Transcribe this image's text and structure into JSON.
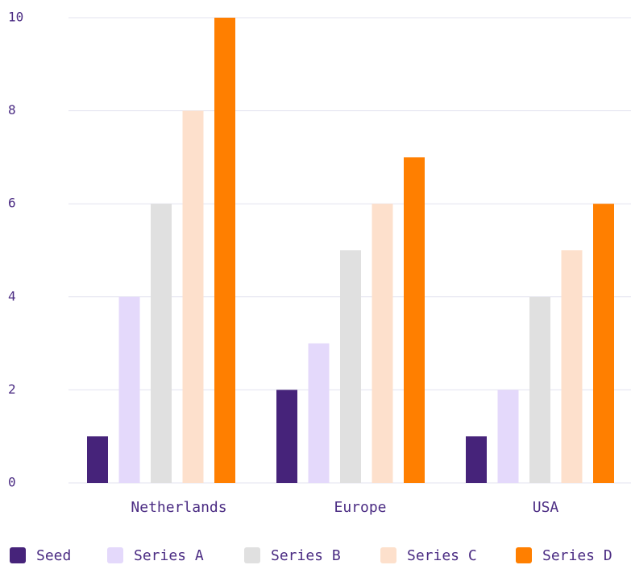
{
  "chart_data": {
    "type": "bar",
    "categories": [
      "Netherlands",
      "Europe",
      "USA"
    ],
    "series": [
      {
        "name": "Seed",
        "values": [
          1,
          2,
          1
        ],
        "color": "#46237a"
      },
      {
        "name": "Series A",
        "values": [
          4,
          3,
          2
        ],
        "color": "#e4d9fb"
      },
      {
        "name": "Series B",
        "values": [
          6,
          5,
          4
        ],
        "color": "#e0e0e0"
      },
      {
        "name": "Series C",
        "values": [
          8,
          6,
          5
        ],
        "color": "#fde0cc"
      },
      {
        "name": "Series D",
        "values": [
          10,
          7,
          6
        ],
        "color": "#ff7f00"
      }
    ],
    "yticks": [
      "0",
      "2",
      "4",
      "6",
      "8",
      "10"
    ],
    "ylim": [
      0,
      10
    ],
    "grid": true,
    "legend_position": "bottom",
    "title": "",
    "xlabel": "",
    "ylabel": "",
    "text_color": "#4b2c83",
    "grid_color": "#e3e3ef"
  }
}
